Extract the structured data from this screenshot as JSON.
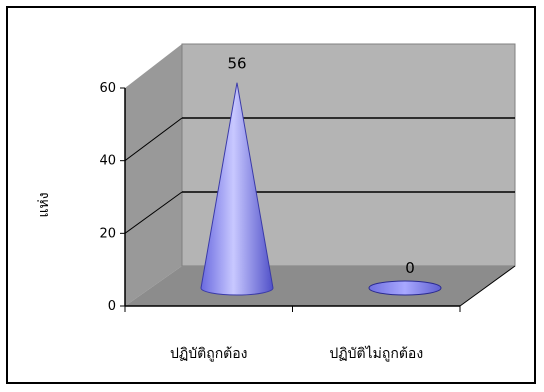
{
  "chart_data": {
    "type": "bar",
    "shape": "cone-3d",
    "categories": [
      "ปฏิบัติถูกต้อง",
      "ปฏิบัติไม่ถูกต้อง"
    ],
    "values": [
      56,
      0
    ],
    "data_labels": [
      "56",
      "0"
    ],
    "title": "",
    "xlabel": "",
    "ylabel": "แห่ง",
    "ylim": [
      0,
      60
    ],
    "yticks": [
      0,
      20,
      40,
      60
    ],
    "grid": true,
    "legend": "none",
    "colors": {
      "cone_fill": "#9a9af5",
      "cone_dark": "#4c4cc8",
      "back_wall": "#b4b4b4",
      "side_wall": "#999999",
      "floor": "#8c8c8c"
    }
  }
}
